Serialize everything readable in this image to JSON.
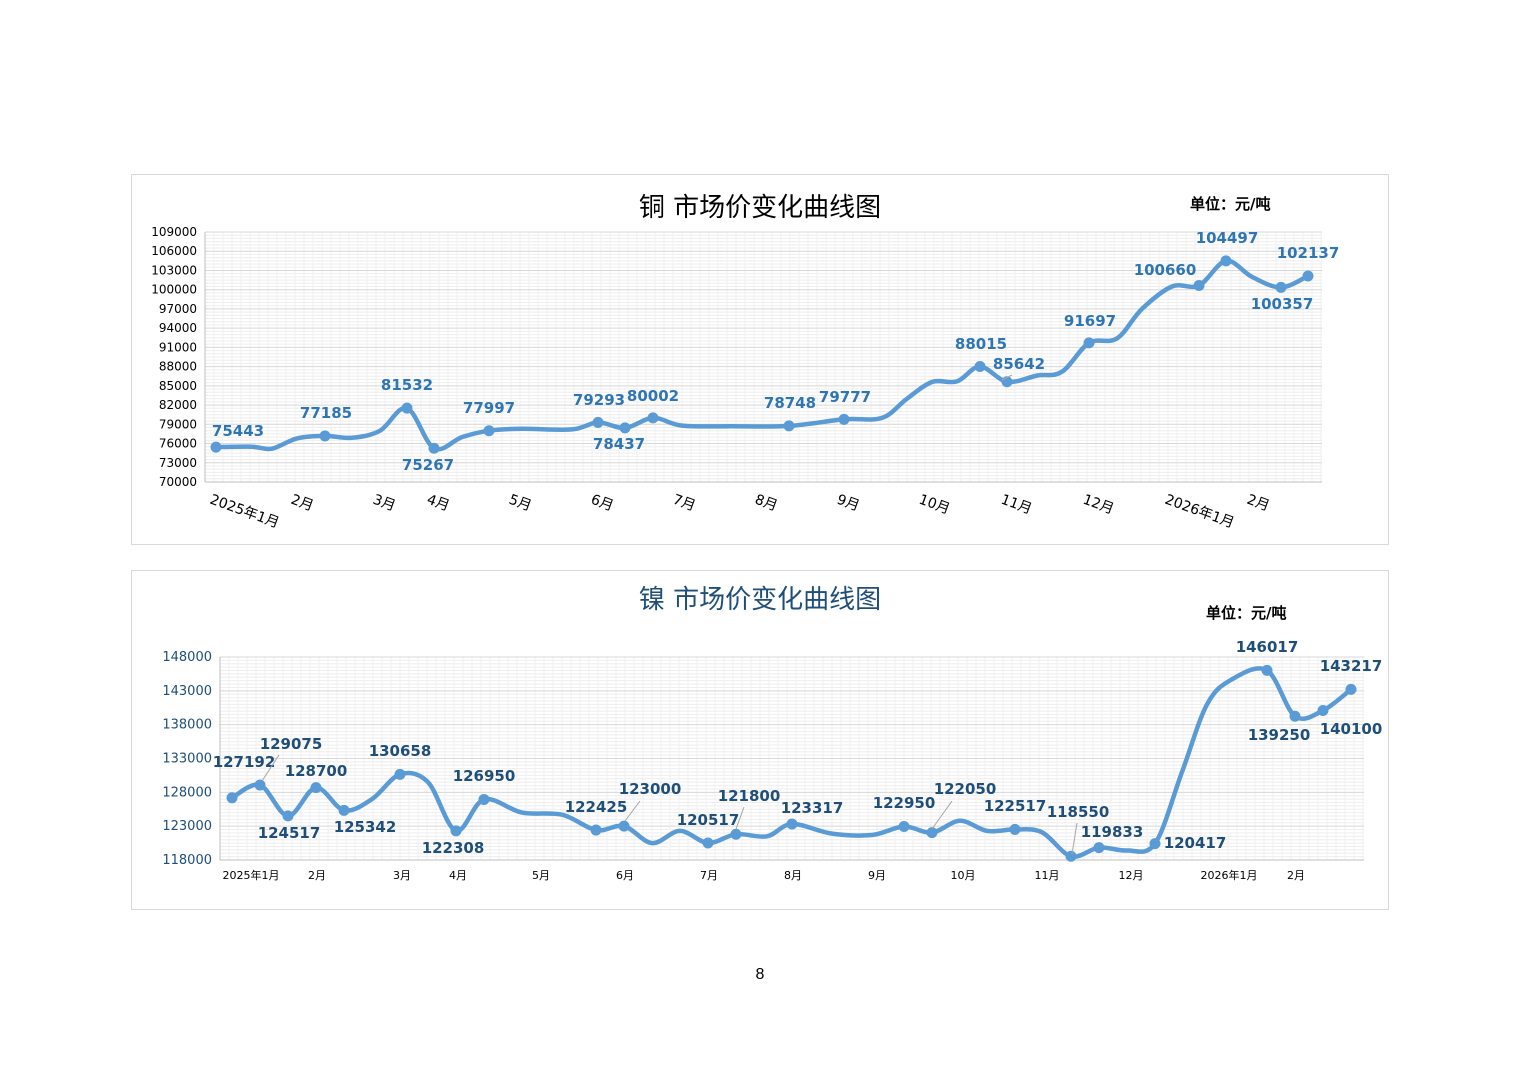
{
  "page_number": "8",
  "chart_data": [
    {
      "type": "line",
      "title": "铜  市场价变化曲线图",
      "unit": "单位：元/吨",
      "ylim": [
        70000,
        109000
      ],
      "yticks": [
        "70000",
        "73000",
        "76000",
        "79000",
        "82000",
        "85000",
        "88000",
        "91000",
        "94000",
        "97000",
        "100000",
        "103000",
        "106000",
        "109000"
      ],
      "xtick_labels": [
        "2025年1月",
        "2月",
        "3月",
        "4月",
        "5月",
        "6月",
        "7月",
        "8月",
        "9月",
        "10月",
        "11月",
        "12月",
        "2026年1月",
        "2月"
      ],
      "line_color": "#5b9bd5",
      "label_color": "#2e75b6",
      "labeled_points": [
        {
          "value": 75443,
          "label": "75443"
        },
        {
          "value": 77185,
          "label": "77185"
        },
        {
          "value": 81532,
          "label": "81532"
        },
        {
          "value": 75267,
          "label": "75267"
        },
        {
          "value": 77997,
          "label": "77997"
        },
        {
          "value": 79293,
          "label": "79293"
        },
        {
          "value": 78437,
          "label": "78437"
        },
        {
          "value": 80002,
          "label": "80002"
        },
        {
          "value": 78748,
          "label": "78748"
        },
        {
          "value": 79777,
          "label": "79777"
        },
        {
          "value": 88015,
          "label": "88015"
        },
        {
          "value": 85642,
          "label": "85642"
        },
        {
          "value": 91697,
          "label": "91697"
        },
        {
          "value": 100660,
          "label": "100660"
        },
        {
          "value": 104497,
          "label": "104497"
        },
        {
          "value": 100357,
          "label": "100357"
        },
        {
          "value": 102137,
          "label": "102137"
        }
      ],
      "grid": true
    },
    {
      "type": "line",
      "title": "镍  市场价变化曲线图",
      "unit": "单位：元/吨",
      "ylim": [
        118000,
        148000
      ],
      "yticks": [
        "118000",
        "123000",
        "128000",
        "133000",
        "138000",
        "143000",
        "148000"
      ],
      "xtick_labels": [
        "2025年1月",
        "2月",
        "3月",
        "4月",
        "5月",
        "6月",
        "7月",
        "8月",
        "9月",
        "10月",
        "11月",
        "12月",
        "2026年1月",
        "2月"
      ],
      "line_color": "#5b9bd5",
      "label_color": "#1f4e79",
      "labeled_points": [
        {
          "value": 127192,
          "label": "127192"
        },
        {
          "value": 129075,
          "label": "129075"
        },
        {
          "value": 124517,
          "label": "124517"
        },
        {
          "value": 128700,
          "label": "128700"
        },
        {
          "value": 125342,
          "label": "125342"
        },
        {
          "value": 130658,
          "label": "130658"
        },
        {
          "value": 122308,
          "label": "122308"
        },
        {
          "value": 126950,
          "label": "126950"
        },
        {
          "value": 122425,
          "label": "122425"
        },
        {
          "value": 123000,
          "label": "123000"
        },
        {
          "value": 120517,
          "label": "120517"
        },
        {
          "value": 121800,
          "label": "121800"
        },
        {
          "value": 123317,
          "label": "123317"
        },
        {
          "value": 122950,
          "label": "122950"
        },
        {
          "value": 122050,
          "label": "122050"
        },
        {
          "value": 122517,
          "label": "122517"
        },
        {
          "value": 118550,
          "label": "118550"
        },
        {
          "value": 119833,
          "label": "119833"
        },
        {
          "value": 120417,
          "label": "120417"
        },
        {
          "value": 146017,
          "label": "146017"
        },
        {
          "value": 139250,
          "label": "139250"
        },
        {
          "value": 140100,
          "label": "140100"
        },
        {
          "value": 143217,
          "label": "143217"
        }
      ],
      "grid": true
    }
  ]
}
